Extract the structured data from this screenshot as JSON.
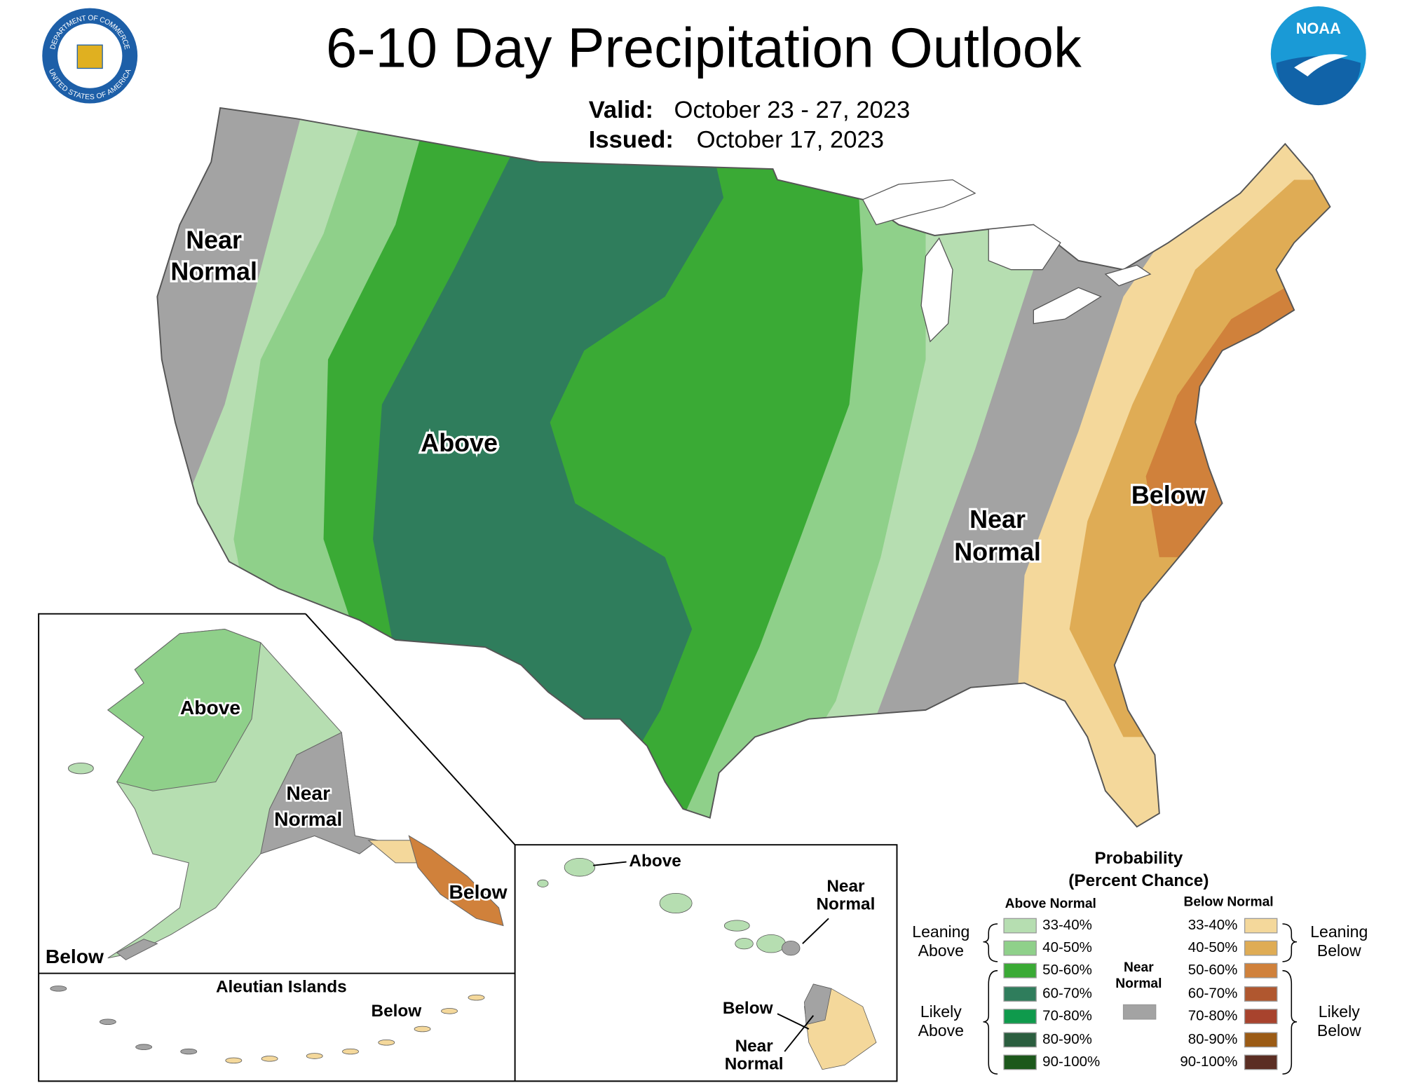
{
  "header": {
    "title": "6-10 Day Precipitation Outlook",
    "valid_label": "Valid:",
    "valid": "October 23 - 27, 2023",
    "issued_label": "Issued:",
    "issued": "October 17, 2023"
  },
  "logos": {
    "doc_top": "DEPARTMENT OF COMMERCE",
    "doc_bottom": "UNITED STATES OF AMERICA",
    "noaa": "NOAA"
  },
  "map_labels": {
    "west": [
      "Near",
      "Normal"
    ],
    "center": "Above",
    "east": [
      "Near",
      "Normal"
    ],
    "southeast": "Below"
  },
  "alaska": {
    "above": "Above",
    "near": [
      "Near",
      "Normal"
    ],
    "below_east": "Below",
    "below_west": "Below"
  },
  "aleutian": {
    "title": "Aleutian Islands",
    "below": "Below"
  },
  "hawaii": {
    "above": "Above",
    "near_east": [
      "Near",
      "Normal"
    ],
    "below": "Below",
    "near_south": [
      "Near",
      "Normal"
    ]
  },
  "legend": {
    "title": [
      "Probability",
      "(Percent Chance)"
    ],
    "above_header": "Above Normal",
    "below_header": "Below Normal",
    "near_header": [
      "Near",
      "Normal"
    ],
    "near_color": "#a3a3a3",
    "above": [
      {
        "label": "33-40%",
        "color": "#b6deb1"
      },
      {
        "label": "40-50%",
        "color": "#8fd08a"
      },
      {
        "label": "50-60%",
        "color": "#3aaa35"
      },
      {
        "label": "60-70%",
        "color": "#2f7d5c"
      },
      {
        "label": "70-80%",
        "color": "#0f9a4c"
      },
      {
        "label": "80-90%",
        "color": "#2b5e3f"
      },
      {
        "label": "90-100%",
        "color": "#1c581b"
      }
    ],
    "below": [
      {
        "label": "33-40%",
        "color": "#f4d89b"
      },
      {
        "label": "40-50%",
        "color": "#dfac55"
      },
      {
        "label": "50-60%",
        "color": "#d0813b"
      },
      {
        "label": "60-70%",
        "color": "#b0572f"
      },
      {
        "label": "70-80%",
        "color": "#a8432d"
      },
      {
        "label": "80-90%",
        "color": "#9b5b15"
      },
      {
        "label": "90-100%",
        "color": "#5b2e23"
      }
    ],
    "leaning_above": [
      "Leaning",
      "Above"
    ],
    "likely_above": [
      "Likely",
      "Above"
    ],
    "leaning_below": [
      "Leaning",
      "Below"
    ],
    "likely_below": [
      "Likely",
      "Below"
    ]
  }
}
